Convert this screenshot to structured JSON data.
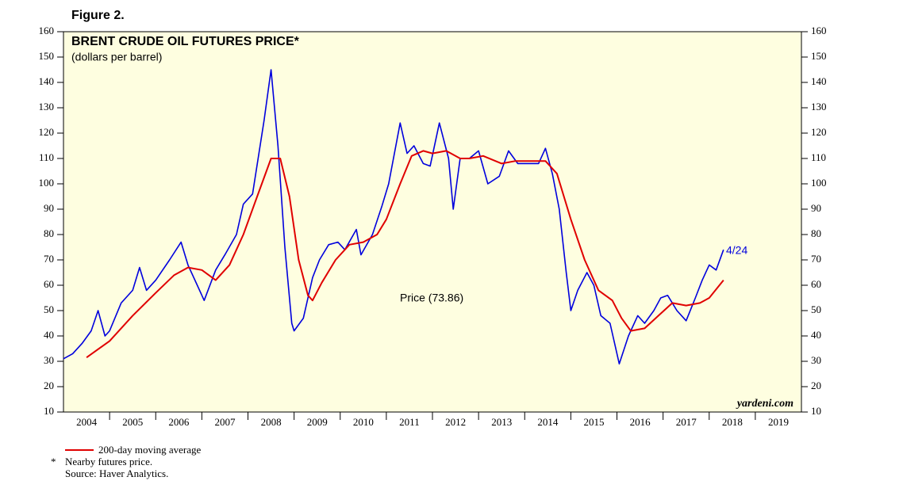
{
  "chart_data": {
    "type": "line",
    "figure_label": "Figure 2.",
    "title": "BRENT CRUDE OIL FUTURES PRICE*",
    "subtitle": "(dollars per barrel)",
    "xlim": [
      2004,
      2020
    ],
    "xticks": [
      {
        "value": 2004.5,
        "label": "2004"
      },
      {
        "value": 2005.5,
        "label": "2005"
      },
      {
        "value": 2006.5,
        "label": "2006"
      },
      {
        "value": 2007.5,
        "label": "2007"
      },
      {
        "value": 2008.5,
        "label": "2008"
      },
      {
        "value": 2009.5,
        "label": "2009"
      },
      {
        "value": 2010.5,
        "label": "2010"
      },
      {
        "value": 2011.5,
        "label": "2011"
      },
      {
        "value": 2012.5,
        "label": "2012"
      },
      {
        "value": 2013.5,
        "label": "2013"
      },
      {
        "value": 2014.5,
        "label": "2014"
      },
      {
        "value": 2015.5,
        "label": "2015"
      },
      {
        "value": 2016.5,
        "label": "2016"
      },
      {
        "value": 2017.5,
        "label": "2017"
      },
      {
        "value": 2018.5,
        "label": "2018"
      },
      {
        "value": 2019.5,
        "label": "2019"
      }
    ],
    "ylim": [
      10,
      160
    ],
    "yticks": [
      10,
      20,
      30,
      40,
      50,
      60,
      70,
      80,
      90,
      100,
      110,
      120,
      130,
      140,
      150,
      160
    ],
    "series": [
      {
        "name": "Price (73.86)",
        "color": "#0000dd",
        "x": [
          2004.0,
          2004.2,
          2004.4,
          2004.6,
          2004.75,
          2004.9,
          2005.0,
          2005.25,
          2005.5,
          2005.65,
          2005.8,
          2006.0,
          2006.3,
          2006.55,
          2006.7,
          2006.9,
          2007.05,
          2007.3,
          2007.5,
          2007.75,
          2007.9,
          2008.1,
          2008.35,
          2008.5,
          2008.65,
          2008.8,
          2008.95,
          2009.0,
          2009.2,
          2009.4,
          2009.55,
          2009.75,
          2009.95,
          2010.1,
          2010.35,
          2010.45,
          2010.7,
          2010.9,
          2011.05,
          2011.3,
          2011.45,
          2011.6,
          2011.8,
          2011.95,
          2012.15,
          2012.35,
          2012.45,
          2012.6,
          2012.8,
          2013.0,
          2013.2,
          2013.45,
          2013.65,
          2013.85,
          2014.0,
          2014.3,
          2014.45,
          2014.6,
          2014.75,
          2014.9,
          2015.0,
          2015.15,
          2015.35,
          2015.5,
          2015.65,
          2015.85,
          2015.95,
          2016.05,
          2016.25,
          2016.45,
          2016.6,
          2016.8,
          2016.95,
          2017.1,
          2017.3,
          2017.5,
          2017.7,
          2017.85,
          2018.0,
          2018.15,
          2018.31
        ],
        "values": [
          31,
          33,
          37,
          42,
          50,
          40,
          42,
          53,
          58,
          67,
          58,
          62,
          70,
          77,
          68,
          60,
          54,
          66,
          72,
          80,
          92,
          96,
          125,
          145,
          115,
          75,
          45,
          42,
          47,
          63,
          70,
          76,
          77,
          74,
          82,
          72,
          80,
          91,
          100,
          124,
          112,
          115,
          108,
          107,
          124,
          110,
          90,
          110,
          110,
          113,
          100,
          103,
          113,
          108,
          108,
          108,
          114,
          104,
          90,
          65,
          50,
          58,
          65,
          60,
          48,
          45,
          37,
          29,
          40,
          48,
          45,
          50,
          55,
          56,
          50,
          46,
          55,
          62,
          68,
          66,
          74
        ]
      },
      {
        "name": "200-day moving average",
        "color": "#e00000",
        "x": [
          2004.5,
          2005.0,
          2005.5,
          2006.0,
          2006.4,
          2006.7,
          2007.0,
          2007.3,
          2007.6,
          2007.9,
          2008.2,
          2008.5,
          2008.7,
          2008.9,
          2009.1,
          2009.3,
          2009.4,
          2009.6,
          2009.9,
          2010.2,
          2010.5,
          2010.8,
          2011.0,
          2011.3,
          2011.55,
          2011.8,
          2012.0,
          2012.3,
          2012.6,
          2012.8,
          2013.1,
          2013.5,
          2013.8,
          2014.2,
          2014.45,
          2014.7,
          2015.0,
          2015.3,
          2015.6,
          2015.9,
          2016.1,
          2016.3,
          2016.6,
          2016.9,
          2017.2,
          2017.5,
          2017.8,
          2018.0,
          2018.31
        ],
        "values": [
          31.5,
          38,
          48,
          57,
          64,
          67,
          66,
          62,
          68,
          80,
          95,
          110,
          110,
          95,
          70,
          56,
          54,
          61,
          70,
          76,
          77,
          80,
          86,
          100,
          111,
          113,
          112,
          113,
          110,
          110,
          111,
          108,
          109,
          109,
          109,
          104,
          86,
          70,
          58,
          54,
          47,
          42,
          43,
          48,
          53,
          52,
          53,
          55,
          62
        ]
      }
    ],
    "annotations": {
      "date": "4/24",
      "source_mark": "yardeni.com"
    },
    "footnotes": {
      "star": "*",
      "note": "Nearby futures price.",
      "source": "Source: Haver Analytics."
    }
  }
}
